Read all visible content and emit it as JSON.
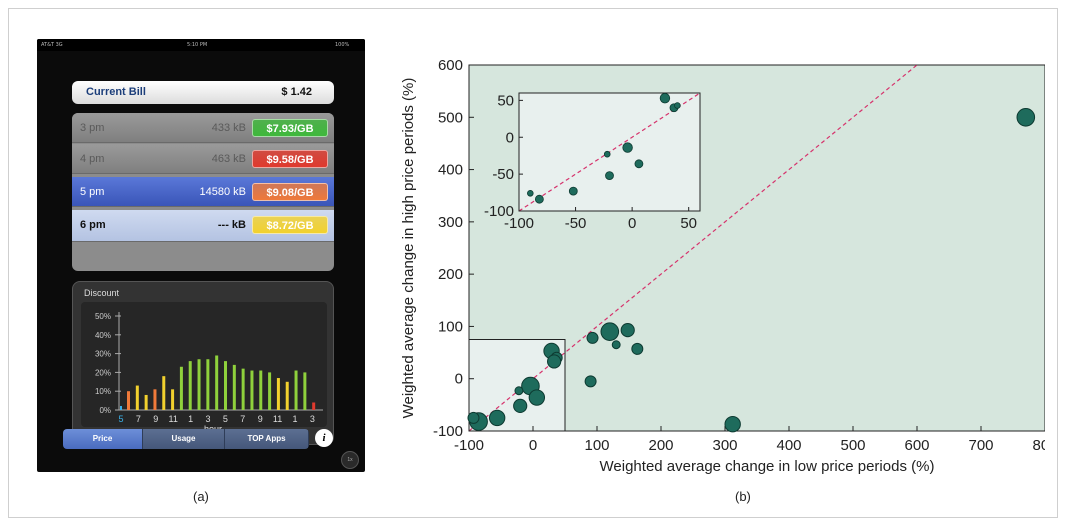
{
  "captions": {
    "a": "(a)",
    "b": "(b)"
  },
  "phone": {
    "status": {
      "carrier": "AT&T 3G",
      "time": "5:10 PM",
      "battery": "100%"
    },
    "bill": {
      "label": "Current Bill",
      "value": "$ 1.42"
    },
    "rows": [
      {
        "time": "3 pm",
        "usage": "433 kB",
        "price": "$7.93/GB",
        "price_color": "#3fb83c",
        "style": "past"
      },
      {
        "time": "4 pm",
        "usage": "463 kB",
        "price": "$9.58/GB",
        "price_color": "#e03a2e",
        "style": "past"
      },
      {
        "time": "5 pm",
        "usage": "14580 kB",
        "price": "$9.08/GB",
        "price_color": "#f07a3a",
        "style": "current"
      },
      {
        "time": "6 pm",
        "usage": "--- kB",
        "price": "$8.72/GB",
        "price_color": "#f2d12e",
        "style": "future"
      }
    ],
    "discount_chart": {
      "title": "Discount",
      "yticks": [
        "50%",
        "40%",
        "30%",
        "20%",
        "10%",
        "0%"
      ],
      "xticks": [
        "5",
        "7",
        "9",
        "11",
        "1",
        "3",
        "5",
        "7",
        "9",
        "11",
        "1",
        "3"
      ],
      "xlabel": "hour",
      "bars": [
        {
          "v": 10,
          "c": "#f07a3a"
        },
        {
          "v": 13,
          "c": "#f2d12e"
        },
        {
          "v": 8,
          "c": "#f2d12e"
        },
        {
          "v": 11,
          "c": "#f07a3a"
        },
        {
          "v": 18,
          "c": "#f2d12e"
        },
        {
          "v": 11,
          "c": "#f2d12e"
        },
        {
          "v": 23,
          "c": "#8fd13c"
        },
        {
          "v": 26,
          "c": "#8fd13c"
        },
        {
          "v": 27,
          "c": "#8fd13c"
        },
        {
          "v": 27,
          "c": "#8fd13c"
        },
        {
          "v": 29,
          "c": "#8fd13c"
        },
        {
          "v": 26,
          "c": "#8fd13c"
        },
        {
          "v": 24,
          "c": "#8fd13c"
        },
        {
          "v": 22,
          "c": "#8fd13c"
        },
        {
          "v": 21,
          "c": "#8fd13c"
        },
        {
          "v": 21,
          "c": "#8fd13c"
        },
        {
          "v": 20,
          "c": "#8fd13c"
        },
        {
          "v": 17,
          "c": "#f2d12e"
        },
        {
          "v": 15,
          "c": "#f2d12e"
        },
        {
          "v": 21,
          "c": "#8fd13c"
        },
        {
          "v": 20,
          "c": "#8fd13c"
        },
        {
          "v": 4,
          "c": "#e03a2e"
        }
      ],
      "current_hour_color": "#3ab0e8"
    },
    "tabs": [
      {
        "label": "Price",
        "selected": true
      },
      {
        "label": "Usage",
        "selected": false
      },
      {
        "label": "TOP Apps",
        "selected": false
      }
    ],
    "info_icon": "info-icon",
    "corner_icon_text": "1x"
  },
  "chart_data": {
    "type": "scatter",
    "xlabel": "Weighted average change in low price periods (%)",
    "ylabel": "Weighted average change in high price periods (%)",
    "xlim": [
      -100,
      800
    ],
    "ylim": [
      -100,
      600
    ],
    "xticks": [
      -100,
      0,
      100,
      200,
      300,
      400,
      500,
      600,
      700,
      800
    ],
    "yticks": [
      -100,
      0,
      100,
      200,
      300,
      400,
      500,
      600
    ],
    "background": "#d6e6dd",
    "marker_color": "#1e6b5c",
    "reference_line": {
      "slope": 1,
      "color": "#d6336c",
      "style": "dashed"
    },
    "points": [
      {
        "x": 770,
        "y": 500,
        "size": 3
      },
      {
        "x": 312,
        "y": -87,
        "size": 2.5
      },
      {
        "x": 120,
        "y": 90,
        "size": 3
      },
      {
        "x": 148,
        "y": 93,
        "size": 2
      },
      {
        "x": 93,
        "y": 78,
        "size": 1.5
      },
      {
        "x": 163,
        "y": 57,
        "size": 1.5
      },
      {
        "x": 130,
        "y": 65,
        "size": 0.8
      },
      {
        "x": 90,
        "y": -5,
        "size": 1.5
      },
      {
        "x": 29,
        "y": 53,
        "size": 2.5
      },
      {
        "x": 37,
        "y": 40,
        "size": 1.5
      },
      {
        "x": 33,
        "y": 33,
        "size": 2
      },
      {
        "x": -4,
        "y": -14,
        "size": 3
      },
      {
        "x": 6,
        "y": -36,
        "size": 2.5
      },
      {
        "x": -22,
        "y": -23,
        "size": 0.8
      },
      {
        "x": -20,
        "y": -52,
        "size": 2
      },
      {
        "x": -56,
        "y": -75,
        "size": 2.5
      },
      {
        "x": -85,
        "y": -82,
        "size": 3
      },
      {
        "x": -93,
        "y": -75,
        "size": 1.5
      }
    ],
    "inset": {
      "xlim": [
        -100,
        60
      ],
      "ylim": [
        -100,
        60
      ],
      "xticks": [
        -100,
        -50,
        0,
        50
      ],
      "yticks": [
        -100,
        -50,
        0,
        50
      ],
      "background": "#e8f0ee",
      "highlight_region": {
        "xlim": [
          -100,
          50
        ],
        "ylim": [
          -100,
          75
        ]
      },
      "points": [
        {
          "x": 29,
          "y": 53,
          "size": 2
        },
        {
          "x": 37,
          "y": 40,
          "size": 1.5
        },
        {
          "x": 40,
          "y": 43,
          "size": 0.8
        },
        {
          "x": -4,
          "y": -14,
          "size": 2
        },
        {
          "x": 6,
          "y": -36,
          "size": 1.5
        },
        {
          "x": -22,
          "y": -23,
          "size": 0.8
        },
        {
          "x": -20,
          "y": -52,
          "size": 1.5
        },
        {
          "x": -52,
          "y": -73,
          "size": 1.5
        },
        {
          "x": -82,
          "y": -84,
          "size": 1.5
        },
        {
          "x": -90,
          "y": -76,
          "size": 0.8
        }
      ]
    }
  }
}
